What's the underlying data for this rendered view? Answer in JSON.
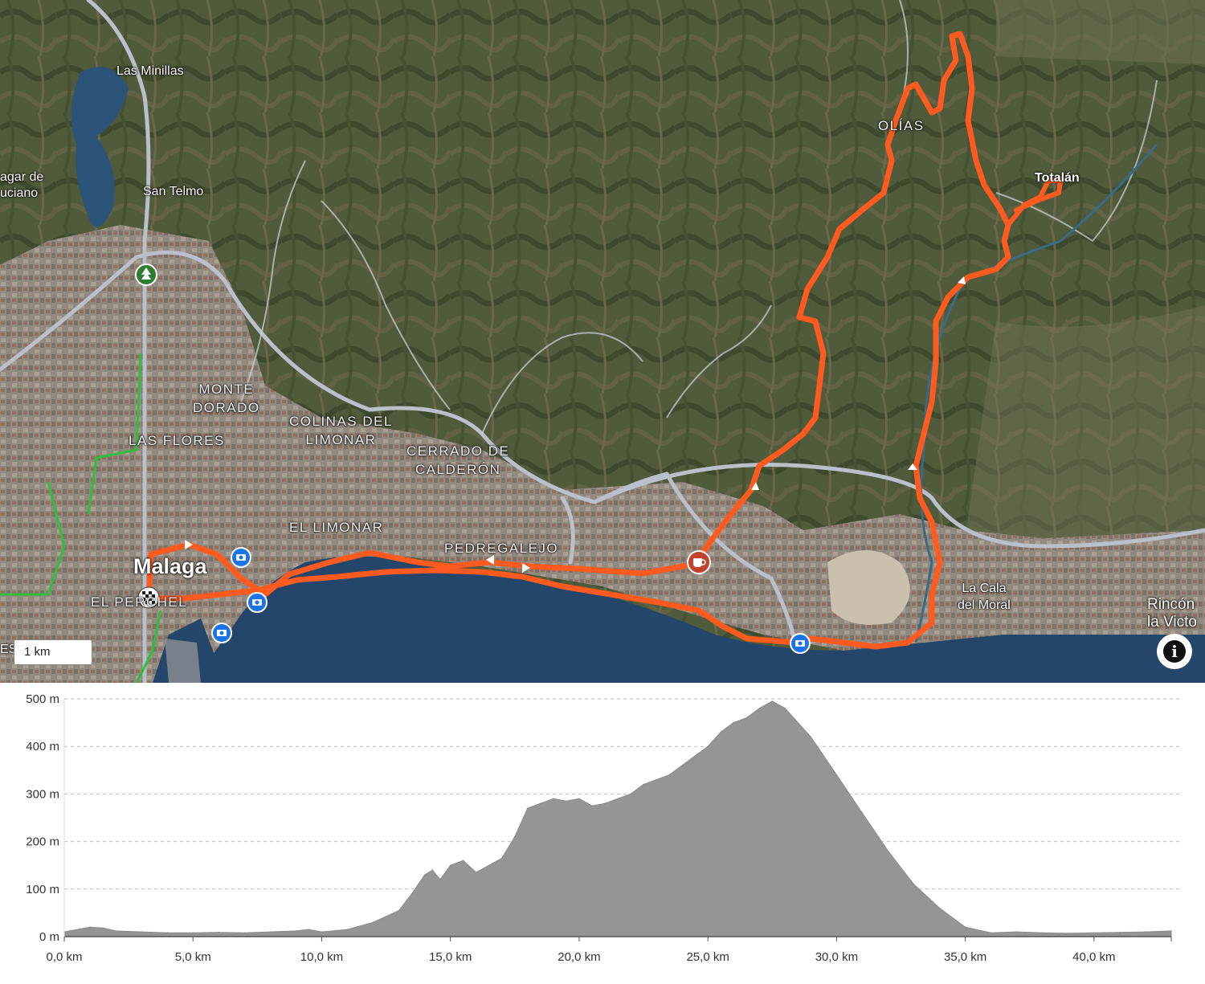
{
  "map": {
    "places": [
      {
        "key": "las_minillas",
        "text": "Las Minillas"
      },
      {
        "key": "agar",
        "text": "agar de"
      },
      {
        "key": "uciano",
        "text": "uciano"
      },
      {
        "key": "san_telmo",
        "text": "San Telmo"
      },
      {
        "key": "olias",
        "text": "OLÍAS"
      },
      {
        "key": "totalan",
        "text": "Totalán"
      },
      {
        "key": "monte_dorado",
        "text": "MONTE\nDORADO"
      },
      {
        "key": "colinas",
        "text": "COLINAS DEL\nLIMONAR"
      },
      {
        "key": "cerrado",
        "text": "CERRADO DE\nCALDERÓN"
      },
      {
        "key": "las_flores",
        "text": "LAS FLORES"
      },
      {
        "key": "el_limonar",
        "text": "EL LIMONAR"
      },
      {
        "key": "pedregalejo",
        "text": "PEDREGALEJO"
      },
      {
        "key": "malaga",
        "text": "Malaga"
      },
      {
        "key": "el_perchel",
        "text": "EL PERCHEL"
      },
      {
        "key": "la_cala",
        "text": "La Cala\ndel Moral"
      },
      {
        "key": "rincon",
        "text": "Rincón\nla Victo"
      },
      {
        "key": "es",
        "text": "ES"
      }
    ],
    "scale_label": "1 km",
    "info_symbol": "i",
    "markers": [
      "park-icon",
      "camera-icon",
      "coffee-icon",
      "finish-flag-icon"
    ],
    "colors": {
      "route": "#ff5a1f",
      "sea": "#23466a",
      "road": "#b9c0cc",
      "marker": "#1a73e8",
      "park": "#2e7d32"
    }
  },
  "elevation": {
    "y_ticks": [
      "0 m",
      "100 m",
      "200 m",
      "300 m",
      "400 m",
      "500 m"
    ],
    "x_ticks": [
      "0,0 km",
      "5,0 km",
      "10,0 km",
      "15,0 km",
      "20,0 km",
      "25,0 km",
      "30,0 km",
      "35,0 km",
      "40,0 km"
    ]
  },
  "chart_data": {
    "type": "area",
    "x_unit": "km",
    "y_unit": "m",
    "xlim": [
      0,
      43
    ],
    "ylim": [
      0,
      500
    ],
    "grid": true,
    "x": [
      0,
      1,
      1.5,
      2,
      3,
      4,
      5,
      6,
      7,
      8,
      9,
      9.5,
      10,
      11,
      12,
      13,
      13.5,
      14,
      14.3,
      14.6,
      15,
      15.5,
      16,
      16.5,
      17,
      17.5,
      18,
      18.5,
      19,
      19.5,
      20,
      20.5,
      21,
      21.5,
      22,
      22.5,
      23,
      23.5,
      24,
      24.5,
      25,
      25.5,
      26,
      26.5,
      27,
      27.5,
      28,
      29,
      30,
      31,
      32,
      33,
      34,
      35,
      36,
      37,
      38,
      39,
      40,
      41,
      42,
      43
    ],
    "y": [
      10,
      20,
      18,
      12,
      10,
      8,
      8,
      9,
      8,
      10,
      12,
      15,
      10,
      15,
      30,
      55,
      90,
      130,
      140,
      120,
      150,
      160,
      135,
      150,
      165,
      210,
      270,
      280,
      290,
      285,
      290,
      275,
      280,
      290,
      300,
      320,
      330,
      340,
      360,
      380,
      400,
      430,
      450,
      460,
      480,
      495,
      480,
      420,
      340,
      260,
      180,
      110,
      60,
      20,
      8,
      10,
      8,
      7,
      8,
      9,
      10,
      12
    ]
  }
}
